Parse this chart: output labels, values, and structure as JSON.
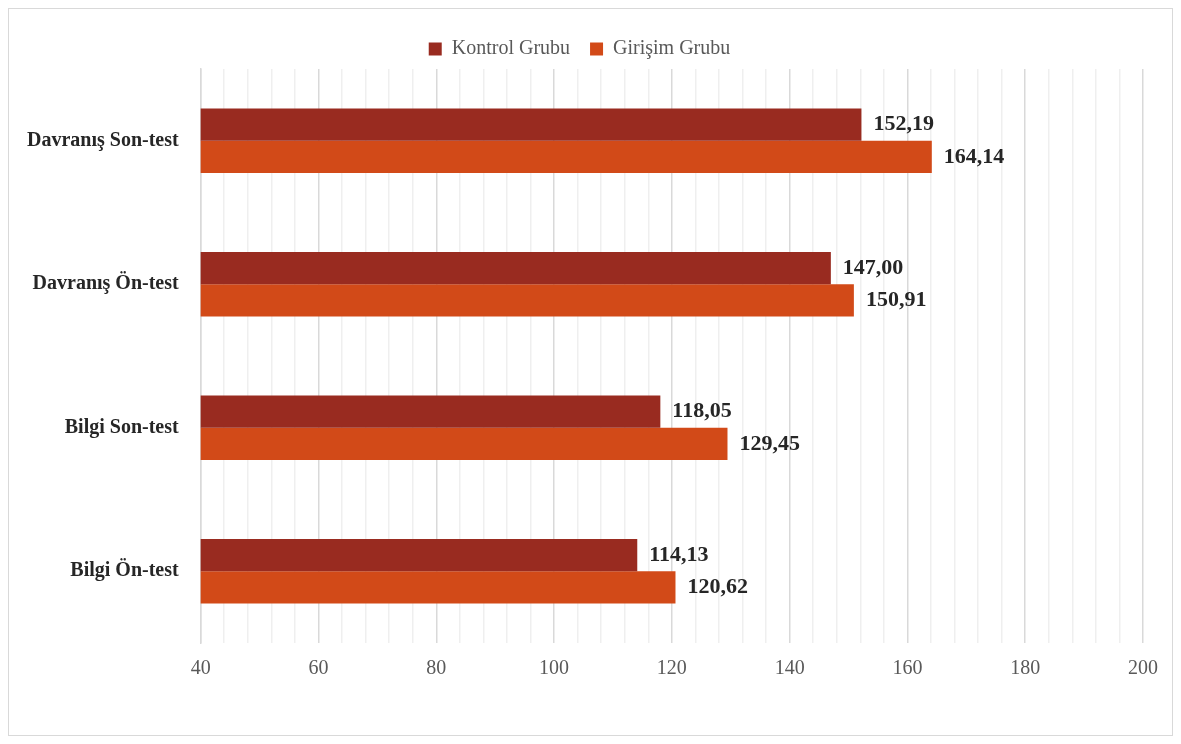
{
  "chart_data": {
    "type": "bar",
    "orientation": "horizontal",
    "categories": [
      "Davranış Son-test",
      "Davranış Ön-test",
      "Bilgi Son-test",
      "Bilgi Ön-test"
    ],
    "series": [
      {
        "name": "Kontrol Grubu",
        "color": "#992b20",
        "values": [
          152.19,
          147.0,
          118.05,
          114.13
        ],
        "value_labels": [
          "152,19",
          "147,00",
          "118,05",
          "114,13"
        ]
      },
      {
        "name": "Girişim Grubu",
        "color": "#d24a18",
        "values": [
          164.14,
          150.91,
          129.45,
          120.62
        ],
        "value_labels": [
          "164,14",
          "150,91",
          "129,45",
          "120,62"
        ]
      }
    ],
    "xlim": [
      40,
      200
    ],
    "xticks": [
      40,
      {
        "value": 44,
        "label": null
      },
      {
        "value": 48,
        "label": null
      },
      {
        "value": 52,
        "label": null
      },
      {
        "value": 56,
        "label": null
      },
      60,
      {
        "value": 64,
        "label": null
      },
      {
        "value": 68,
        "label": null
      },
      {
        "value": 72,
        "label": null
      },
      {
        "value": 76,
        "label": null
      },
      80,
      {
        "value": 84,
        "label": null
      },
      {
        "value": 88,
        "label": null
      },
      {
        "value": 92,
        "label": null
      },
      {
        "value": 96,
        "label": null
      },
      100,
      {
        "value": 104,
        "label": null
      },
      {
        "value": 108,
        "label": null
      },
      {
        "value": 112,
        "label": null
      },
      {
        "value": 116,
        "label": null
      },
      120,
      {
        "value": 124,
        "label": null
      },
      {
        "value": 128,
        "label": null
      },
      {
        "value": 132,
        "label": null
      },
      {
        "value": 136,
        "label": null
      },
      140,
      {
        "value": 144,
        "label": null
      },
      {
        "value": 148,
        "label": null
      },
      {
        "value": 152,
        "label": null
      },
      {
        "value": 156,
        "label": null
      },
      160,
      {
        "value": 164,
        "label": null
      },
      {
        "value": 168,
        "label": null
      },
      {
        "value": 172,
        "label": null
      },
      {
        "value": 176,
        "label": null
      },
      180,
      {
        "value": 184,
        "label": null
      },
      {
        "value": 188,
        "label": null
      },
      {
        "value": 192,
        "label": null
      },
      {
        "value": 196,
        "label": null
      },
      200
    ],
    "grid": "x",
    "legend": "top"
  }
}
